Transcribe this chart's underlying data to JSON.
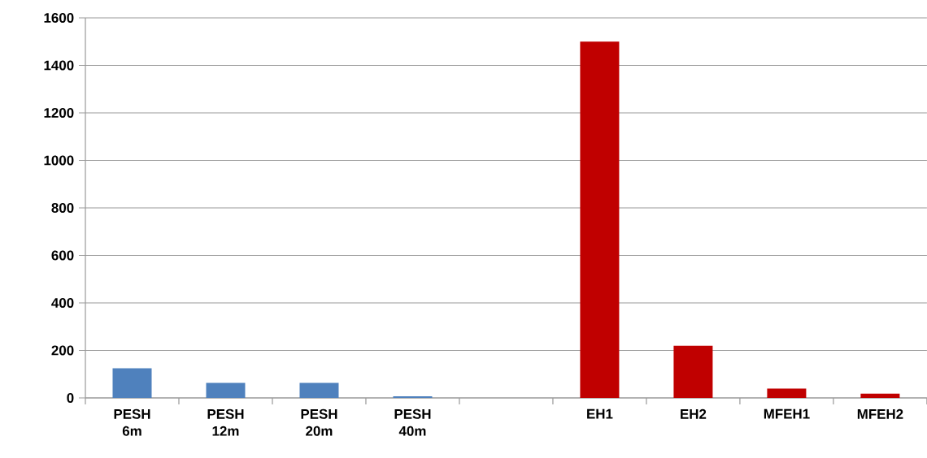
{
  "chart_data": {
    "type": "bar",
    "categories": [
      "PESH 6m",
      "PESH 12m",
      "PESH 20m",
      "PESH 40m",
      null,
      "EH1",
      "EH2",
      "MFEH1",
      "MFEH2"
    ],
    "values": [
      125,
      63,
      63,
      7,
      null,
      1500,
      220,
      39,
      18
    ],
    "colors": [
      "#4f81bd",
      "#4f81bd",
      "#4f81bd",
      "#4f81bd",
      null,
      "#c00000",
      "#c00000",
      "#c00000",
      "#c00000"
    ],
    "ylim": [
      0,
      1600
    ],
    "yticks": [
      0,
      200,
      400,
      600,
      800,
      1000,
      1200,
      1400,
      1600
    ],
    "grid": "y"
  }
}
